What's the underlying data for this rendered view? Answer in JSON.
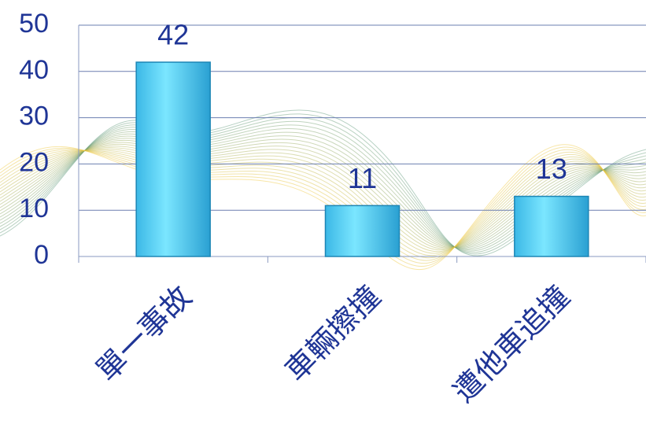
{
  "chart_data": {
    "type": "bar",
    "categories": [
      "單一事故",
      "車輛擦撞",
      "遭他車追撞"
    ],
    "values": [
      42,
      11,
      13
    ],
    "ylim": [
      0,
      50
    ],
    "yticks": [
      0,
      10,
      20,
      30,
      40,
      50
    ],
    "grid": true
  }
}
